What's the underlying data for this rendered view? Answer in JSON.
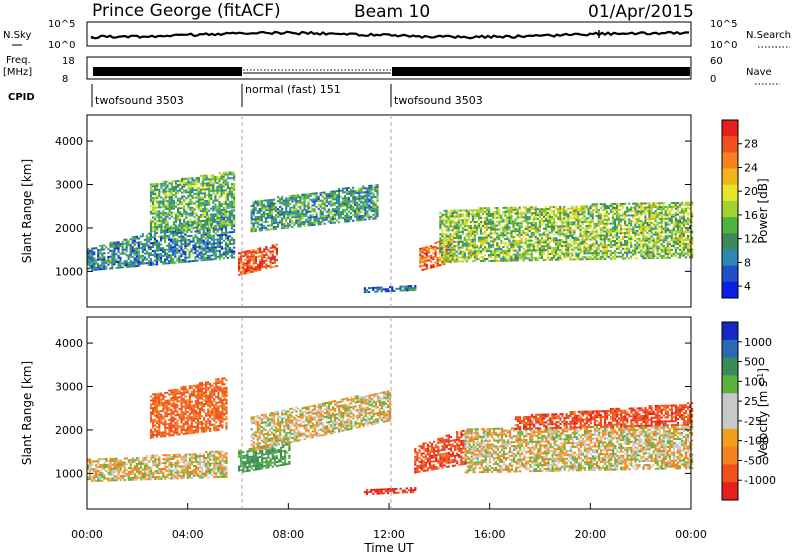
{
  "header": {
    "station": "Prince George (fitACF)",
    "beam": "Beam 10",
    "date": "01/Apr/2015"
  },
  "noise_panel": {
    "left_label": "N.Sky",
    "left_ticks": [
      "10^5",
      "10^0"
    ],
    "right_ticks": [
      "10^5",
      "10^0"
    ],
    "right_label": "N.Search"
  },
  "freq_panel": {
    "left_label_top": "Freq.",
    "left_label_bottom": "[MHz]",
    "left_ticks": [
      "18",
      "8"
    ],
    "right_ticks": [
      "60",
      "0"
    ],
    "right_label": "Nave"
  },
  "cpid": {
    "label": "CPID",
    "segments": [
      {
        "name": "twofsound 3503",
        "start_hour": 0,
        "end_hour": 6
      },
      {
        "name": "normal (fast) 151",
        "start_hour": 6,
        "end_hour": 12
      },
      {
        "name": "twofsound 3503",
        "start_hour": 12,
        "end_hour": 24
      }
    ]
  },
  "chart_data": [
    {
      "type": "heatmap",
      "quantity": "Power",
      "ylabel": "Slant Range [km]",
      "ylim": [
        180,
        4600
      ],
      "yticks": [
        "1000",
        "2000",
        "3000",
        "4000"
      ],
      "xlim_hours": [
        0,
        24
      ],
      "colorbar": {
        "label": "Power [dB]",
        "ticks": [
          "4",
          "8",
          "12",
          "16",
          "20",
          "24",
          "28"
        ],
        "colors": [
          "#0a1ee6",
          "#1e50c8",
          "#2a8ab4",
          "#3c8a5a",
          "#50b43c",
          "#a0d232",
          "#e6e628",
          "#f0b41e",
          "#f5821e",
          "#f0501e",
          "#e61e1e"
        ]
      },
      "echo_regions": [
        {
          "x": [
            0.0,
            5.8
          ],
          "lo": [
            1000,
            1300
          ],
          "hi": [
            1500,
            2400
          ],
          "value": 8
        },
        {
          "x": [
            2.5,
            5.8
          ],
          "lo": [
            1900,
            2000
          ],
          "hi": [
            3000,
            3300
          ],
          "value": 12
        },
        {
          "x": [
            6.0,
            7.5
          ],
          "lo": [
            900,
            1100
          ],
          "hi": [
            1400,
            1600
          ],
          "value": 26
        },
        {
          "x": [
            6.5,
            11.5
          ],
          "lo": [
            1900,
            2200
          ],
          "hi": [
            2600,
            3000
          ],
          "value": 10
        },
        {
          "x": [
            13.2,
            14.5
          ],
          "lo": [
            1000,
            1200
          ],
          "hi": [
            1500,
            1800
          ],
          "value": 24
        },
        {
          "x": [
            14.0,
            24.0
          ],
          "lo": [
            1200,
            1300
          ],
          "hi": [
            2400,
            2600
          ],
          "value": 14
        },
        {
          "x": [
            11.0,
            13.0
          ],
          "lo": [
            500,
            550
          ],
          "hi": [
            600,
            650
          ],
          "value": 6
        }
      ]
    },
    {
      "type": "heatmap",
      "quantity": "Velocity",
      "ylabel": "Slant Range [km]",
      "ylim": [
        180,
        4600
      ],
      "yticks": [
        "1000",
        "2000",
        "3000",
        "4000"
      ],
      "xlim_hours": [
        0,
        24
      ],
      "xticks": [
        "00:00",
        "04:00",
        "08:00",
        "12:00",
        "16:00",
        "20:00",
        "00:00"
      ],
      "xlabel": "Time UT",
      "colorbar": {
        "label": "Velocity [m s-1]",
        "label_main": "Velocity [m s",
        "label_sup": "-1",
        "label_end": "]",
        "ticks": [
          "1000",
          "500",
          "100",
          "25",
          "-25",
          "-100",
          "-500",
          "-1000"
        ],
        "colors": [
          "#1428c8",
          "#2a6ab4",
          "#3c8a5a",
          "#5ab43c",
          "#c8c8c8",
          "#c8c8c8",
          "#f0a01e",
          "#f5821e",
          "#f0501e",
          "#e61e1e"
        ]
      },
      "echo_regions": [
        {
          "x": [
            0.0,
            5.5
          ],
          "lo": [
            800,
            900
          ],
          "hi": [
            1300,
            1500
          ],
          "value": 0
        },
        {
          "x": [
            2.5,
            5.5
          ],
          "lo": [
            1800,
            2000
          ],
          "hi": [
            2800,
            3200
          ],
          "value": -300
        },
        {
          "x": [
            6.0,
            8.0
          ],
          "lo": [
            1000,
            1200
          ],
          "hi": [
            1500,
            1700
          ],
          "value": 300
        },
        {
          "x": [
            6.5,
            12.0
          ],
          "lo": [
            1500,
            2200
          ],
          "hi": [
            2300,
            2900
          ],
          "value": 0
        },
        {
          "x": [
            13.0,
            15.0
          ],
          "lo": [
            1000,
            1200
          ],
          "hi": [
            1600,
            2000
          ],
          "value": -400
        },
        {
          "x": [
            15.0,
            24.0
          ],
          "lo": [
            1000,
            1100
          ],
          "hi": [
            2000,
            2100
          ],
          "value": 0
        },
        {
          "x": [
            17.0,
            24.0
          ],
          "lo": [
            2000,
            2100
          ],
          "hi": [
            2300,
            2600
          ],
          "value": -400
        },
        {
          "x": [
            11.0,
            13.0
          ],
          "lo": [
            500,
            550
          ],
          "hi": [
            600,
            650
          ],
          "value": -600
        }
      ]
    }
  ]
}
